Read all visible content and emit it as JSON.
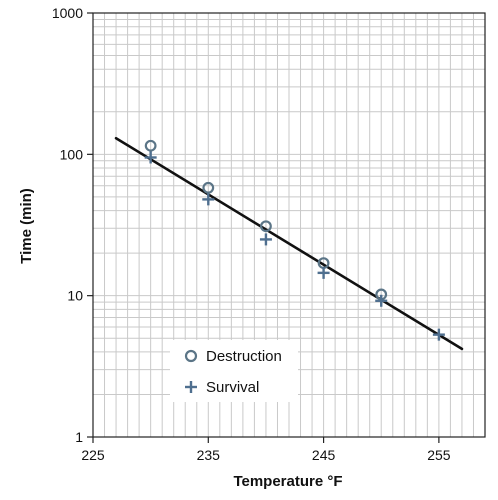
{
  "chart_data": {
    "type": "scatter",
    "xlabel": "Temperature °F",
    "ylabel": "Time (min)",
    "xlim": [
      225,
      259
    ],
    "ylim": [
      1,
      1000
    ],
    "y_scale": "log",
    "x_ticks": [
      225,
      235,
      245,
      255
    ],
    "x_tick_labels": [
      "225",
      "235",
      "245",
      "255"
    ],
    "y_ticks": [
      1,
      10,
      100,
      1000
    ],
    "y_tick_labels": [
      "1",
      "10",
      "100",
      "1000"
    ],
    "grid": true,
    "legend_position": "lower-left",
    "series": [
      {
        "name": "Destruction",
        "marker": "circle",
        "color": "#5b7587",
        "x": [
          230,
          235,
          240,
          245,
          250
        ],
        "y": [
          115,
          58,
          31,
          17,
          10.2
        ]
      },
      {
        "name": "Survival",
        "marker": "plus",
        "color": "#4f6f8f",
        "x": [
          230,
          235,
          240,
          245,
          250,
          255
        ],
        "y": [
          95,
          48,
          25,
          14.5,
          9.2,
          5.3
        ]
      }
    ],
    "fit_line": {
      "color": "#111111",
      "x": [
        227,
        257
      ],
      "y": [
        130,
        4.2
      ]
    }
  }
}
